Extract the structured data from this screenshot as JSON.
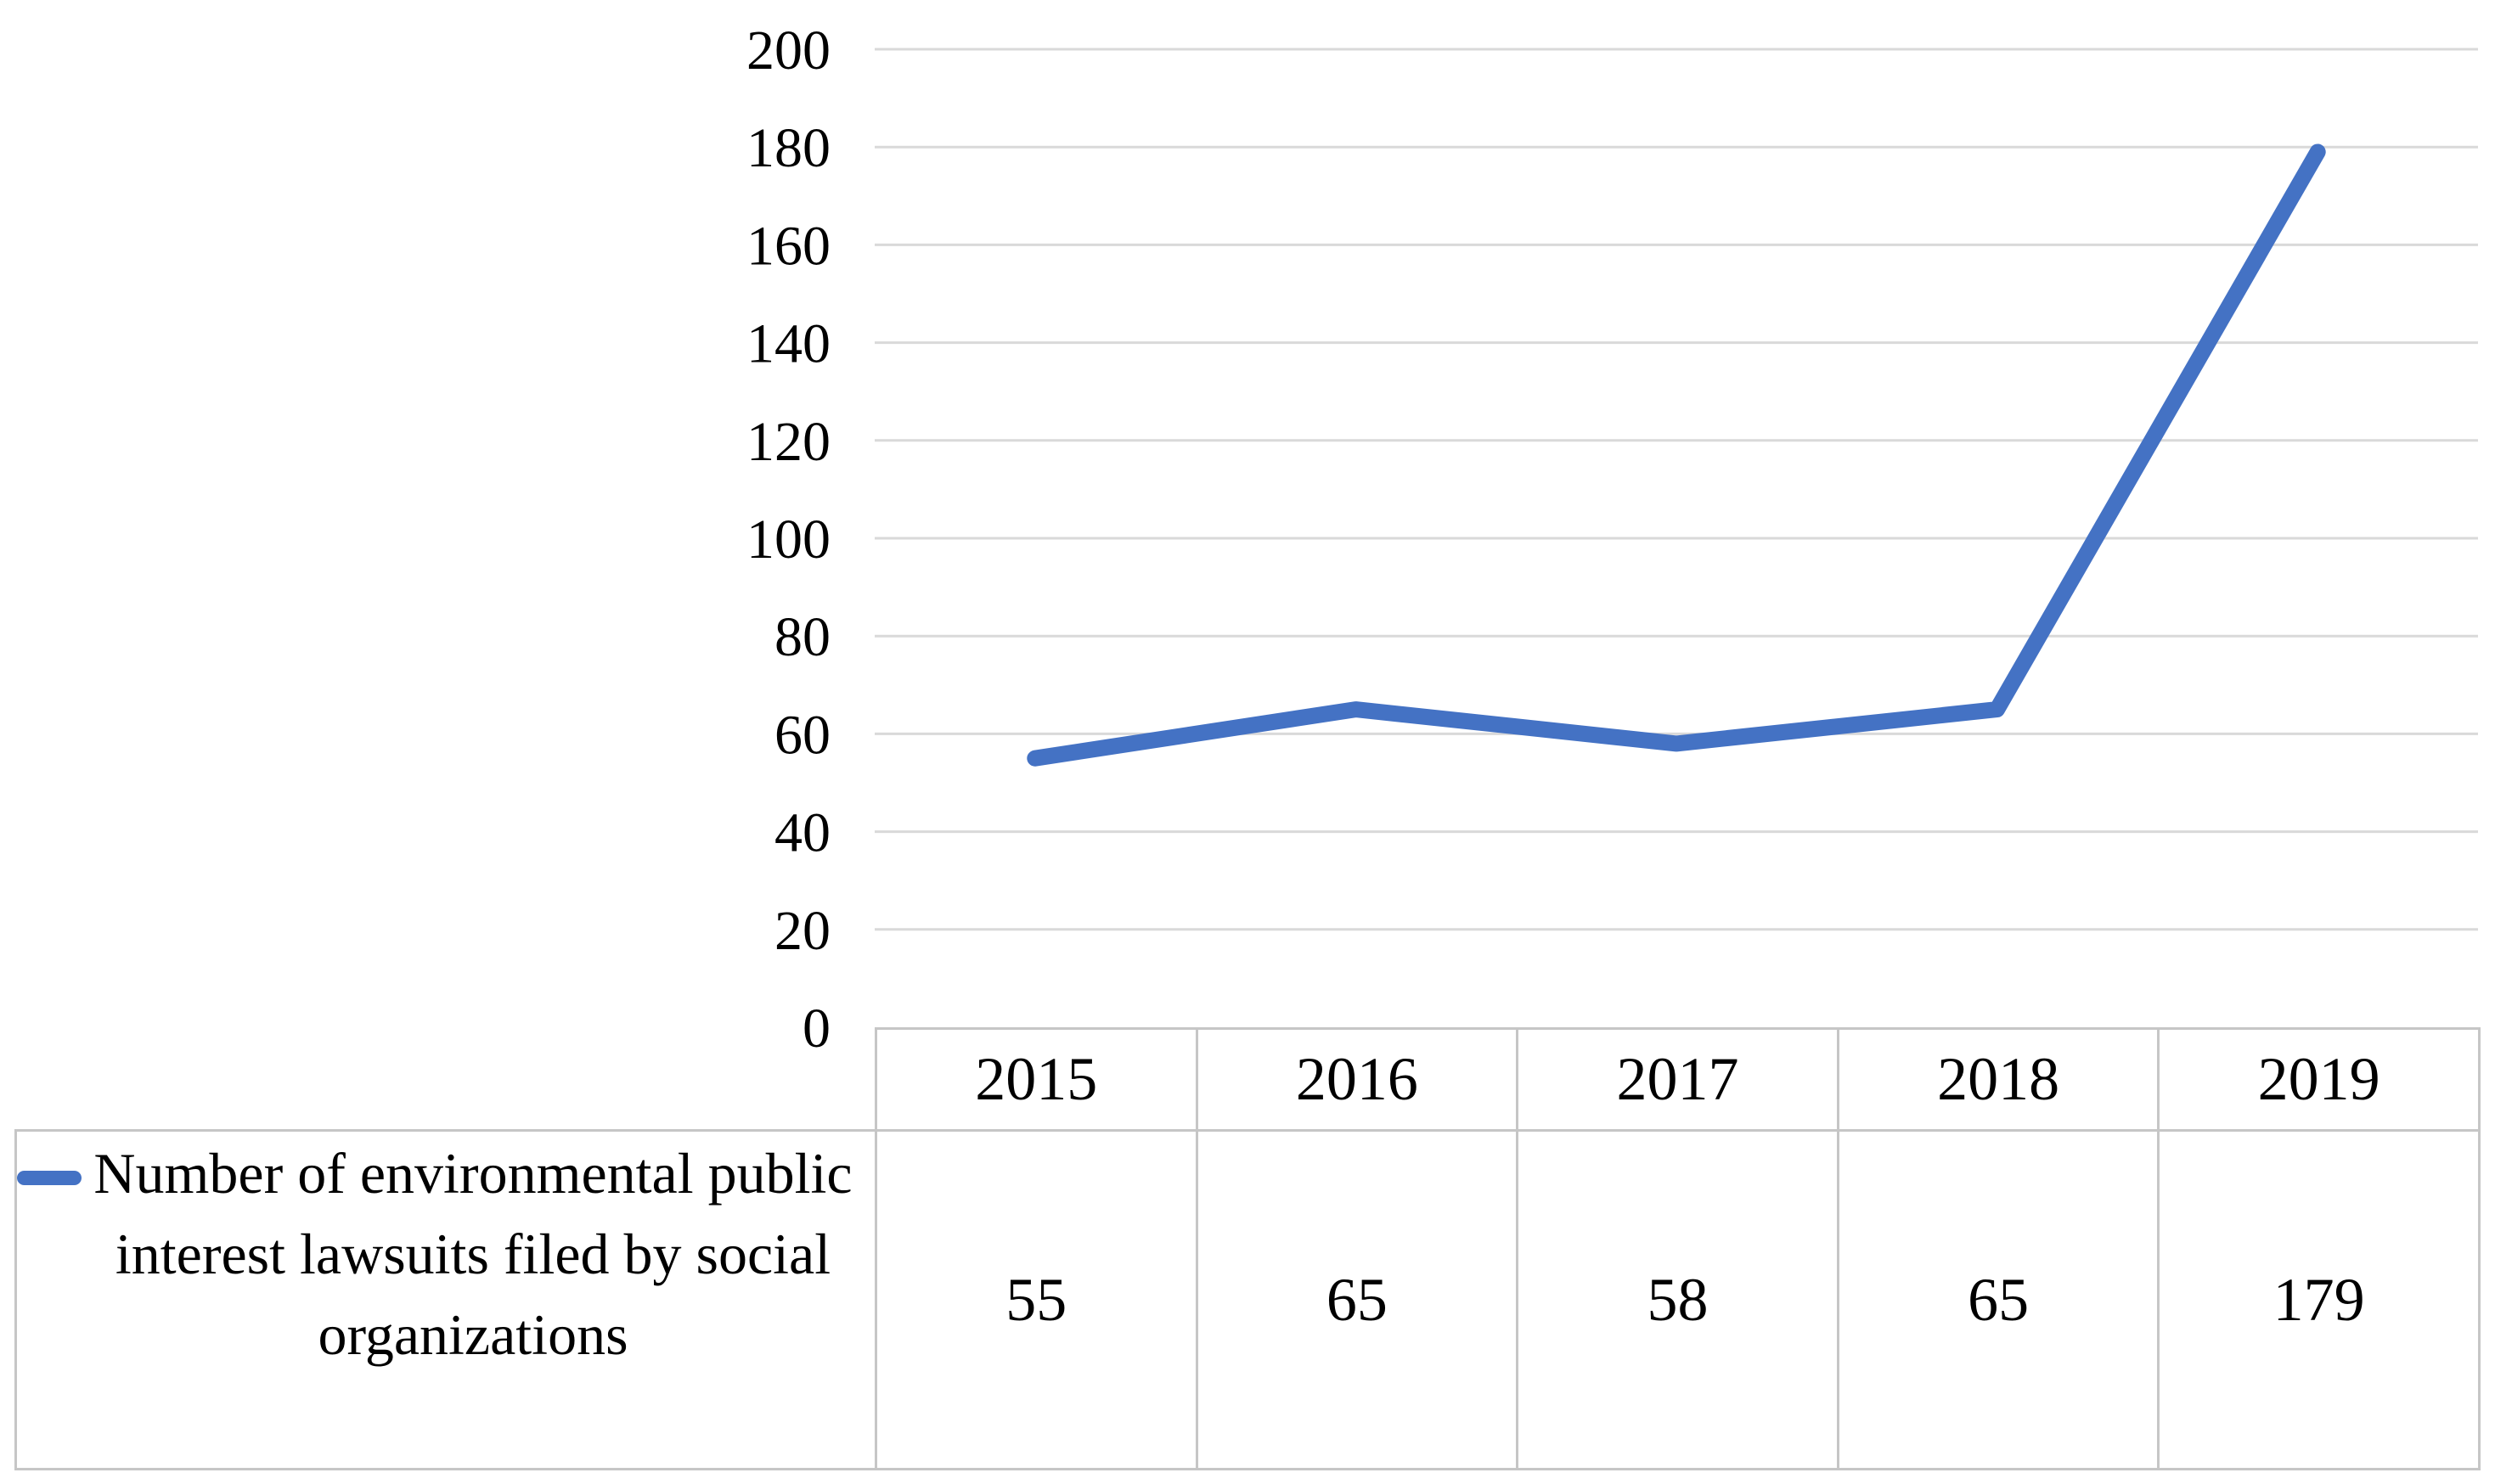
{
  "chart_data": {
    "type": "line",
    "title": "",
    "xlabel": "",
    "ylabel": "",
    "categories": [
      "2015",
      "2016",
      "2017",
      "2018",
      "2019"
    ],
    "series": [
      {
        "name": "Number of environmental public interest lawsuits filed by social organizations",
        "values": [
          55,
          65,
          58,
          65,
          179
        ]
      }
    ],
    "ylim": [
      0,
      200
    ],
    "ytick_step": 20,
    "ytick_labels": [
      "0",
      "20",
      "40",
      "60",
      "80",
      "100",
      "120",
      "140",
      "160",
      "180",
      "200"
    ],
    "grid": true,
    "legend_position": "bottom-left-table-cell",
    "colors": {
      "line": "#4472C4",
      "gridline": "#D9D9D9",
      "table_border": "#C6C6C6",
      "text": "#000000"
    }
  }
}
